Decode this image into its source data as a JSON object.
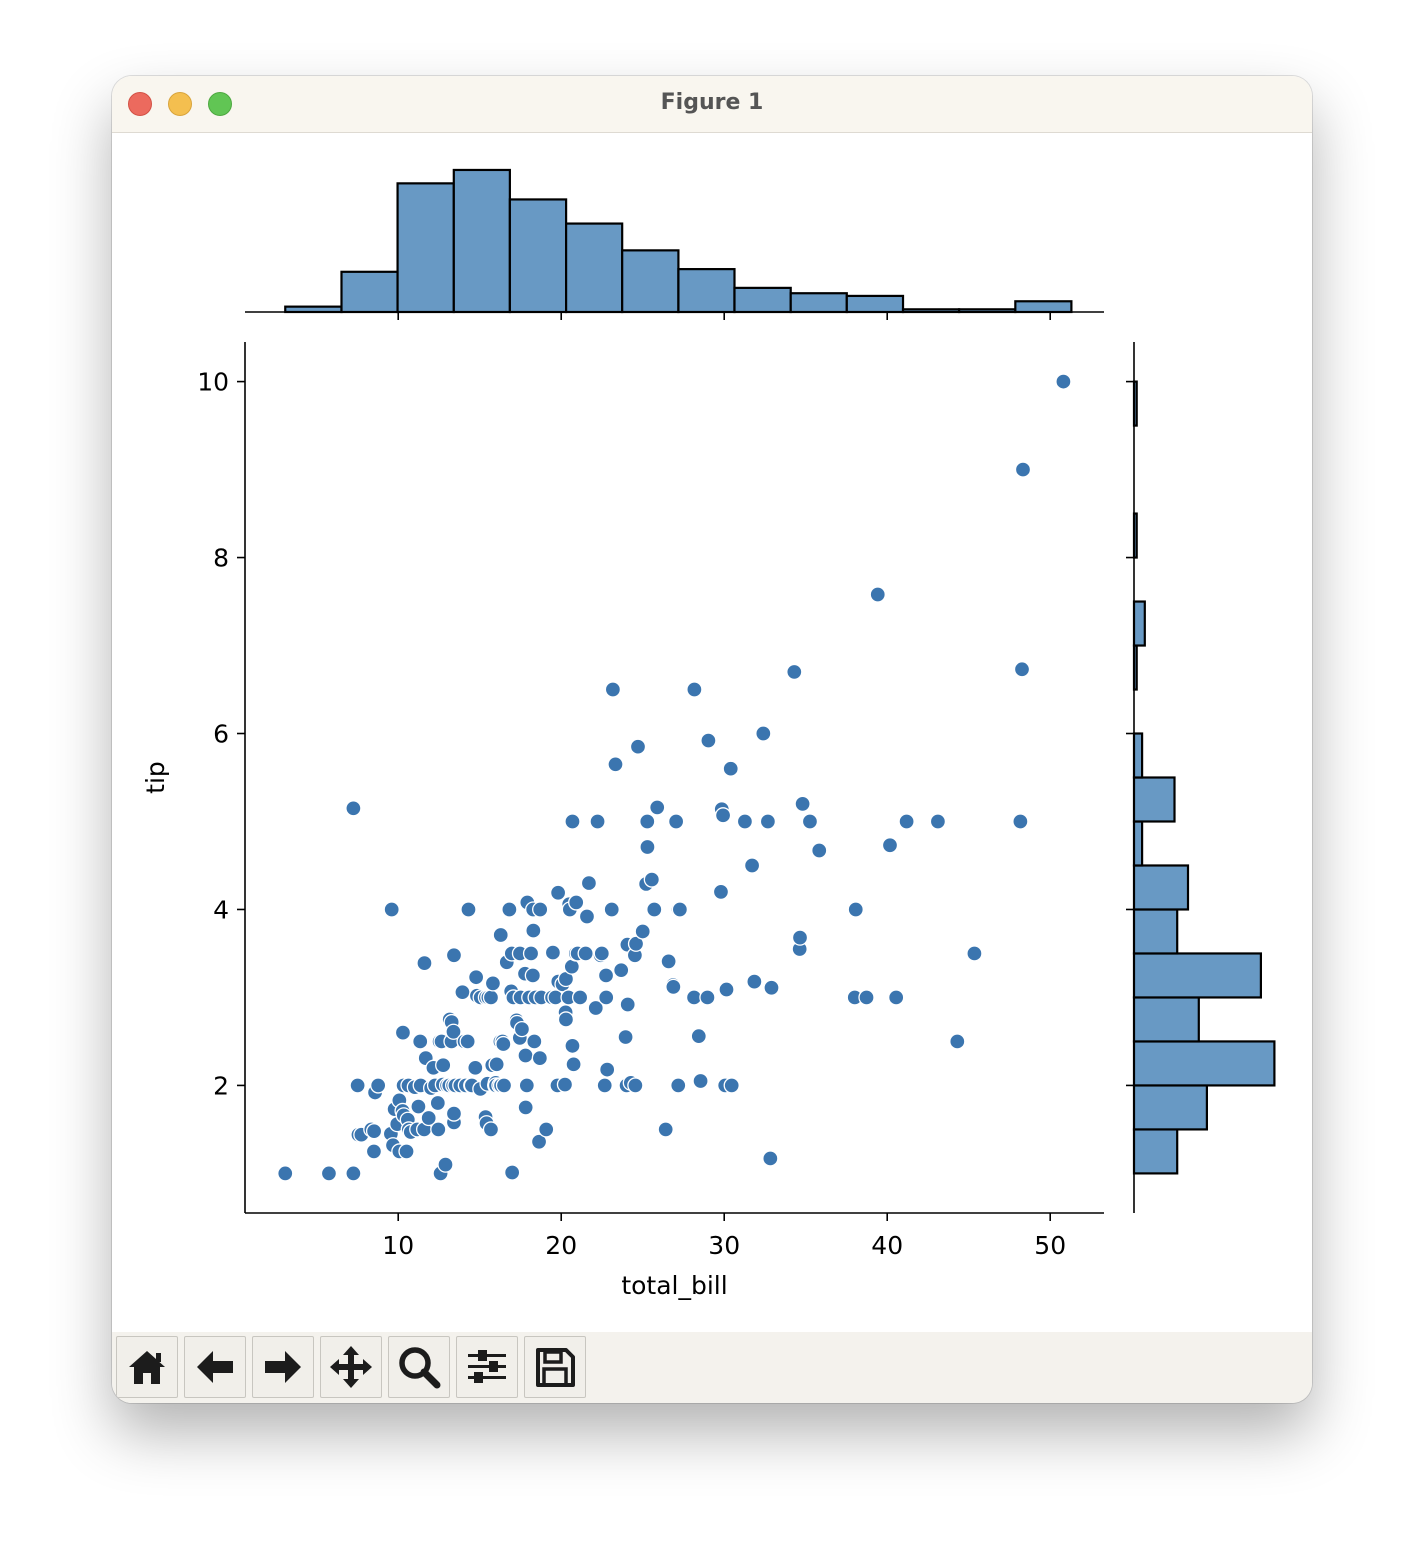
{
  "window": {
    "title": "Figure 1"
  },
  "toolbar": {
    "buttons": [
      {
        "name": "home-button",
        "icon": "home-icon"
      },
      {
        "name": "back-button",
        "icon": "arrow-left-icon"
      },
      {
        "name": "forward-button",
        "icon": "arrow-right-icon"
      },
      {
        "name": "pan-button",
        "icon": "move-icon"
      },
      {
        "name": "zoom-button",
        "icon": "magnifier-icon"
      },
      {
        "name": "configure-subplots-button",
        "icon": "sliders-icon"
      },
      {
        "name": "save-button",
        "icon": "floppy-disk-icon"
      }
    ]
  },
  "chart_data": {
    "type": "scatter",
    "kind": "jointplot",
    "xlabel": "total_bill",
    "ylabel": "tip",
    "xlim": [
      0.6,
      53.3
    ],
    "ylim": [
      0.55,
      10.45
    ],
    "xticks": [
      10,
      20,
      30,
      40,
      50
    ],
    "yticks": [
      2,
      4,
      6,
      8,
      10
    ],
    "grid": false,
    "colors": {
      "marker": "#3b75af",
      "hist_fill": "#6899c4",
      "edge": "#000000"
    },
    "points": [
      [
        3.07,
        1.0
      ],
      [
        5.75,
        1.0
      ],
      [
        7.25,
        1.0
      ],
      [
        7.25,
        5.15
      ],
      [
        7.51,
        2.0
      ],
      [
        7.56,
        1.44
      ],
      [
        7.74,
        1.44
      ],
      [
        8.35,
        1.5
      ],
      [
        8.51,
        1.25
      ],
      [
        8.52,
        1.48
      ],
      [
        8.58,
        1.92
      ],
      [
        8.77,
        2.0
      ],
      [
        9.55,
        1.45
      ],
      [
        9.6,
        4.0
      ],
      [
        9.68,
        1.32
      ],
      [
        9.78,
        1.73
      ],
      [
        9.94,
        1.56
      ],
      [
        10.07,
        1.83
      ],
      [
        10.07,
        1.25
      ],
      [
        10.27,
        1.71
      ],
      [
        10.29,
        2.6
      ],
      [
        10.33,
        2.0
      ],
      [
        10.34,
        1.66
      ],
      [
        10.51,
        1.25
      ],
      [
        10.59,
        1.61
      ],
      [
        10.63,
        2.0
      ],
      [
        10.65,
        1.5
      ],
      [
        10.77,
        1.47
      ],
      [
        11.02,
        1.98
      ],
      [
        11.17,
        1.5
      ],
      [
        11.24,
        1.76
      ],
      [
        11.35,
        2.5
      ],
      [
        11.38,
        2.0
      ],
      [
        11.59,
        1.5
      ],
      [
        11.61,
        3.39
      ],
      [
        11.69,
        2.31
      ],
      [
        11.87,
        1.63
      ],
      [
        12.02,
        1.97
      ],
      [
        12.16,
        2.2
      ],
      [
        12.26,
        2.0
      ],
      [
        12.43,
        1.8
      ],
      [
        12.46,
        1.5
      ],
      [
        12.54,
        2.5
      ],
      [
        12.6,
        1.0
      ],
      [
        12.66,
        2.5
      ],
      [
        12.74,
        2.01
      ],
      [
        12.76,
        2.23
      ],
      [
        12.9,
        1.1
      ],
      [
        13.0,
        2.0
      ],
      [
        13.13,
        2.0
      ],
      [
        13.16,
        2.75
      ],
      [
        13.27,
        2.5
      ],
      [
        13.28,
        2.72
      ],
      [
        13.37,
        2.0
      ],
      [
        13.39,
        2.61
      ],
      [
        13.42,
        1.58
      ],
      [
        13.42,
        3.48
      ],
      [
        13.42,
        1.68
      ],
      [
        13.51,
        2.0
      ],
      [
        13.81,
        2.0
      ],
      [
        13.94,
        3.06
      ],
      [
        14.07,
        2.5
      ],
      [
        14.15,
        2.0
      ],
      [
        14.26,
        2.5
      ],
      [
        14.31,
        4.0
      ],
      [
        14.48,
        2.0
      ],
      [
        14.52,
        2.0
      ],
      [
        14.73,
        2.2
      ],
      [
        14.78,
        3.23
      ],
      [
        14.83,
        3.02
      ],
      [
        15.04,
        1.96
      ],
      [
        15.06,
        3.0
      ],
      [
        15.36,
        1.64
      ],
      [
        15.38,
        3.0
      ],
      [
        15.42,
        1.57
      ],
      [
        15.48,
        2.02
      ],
      [
        15.53,
        3.0
      ],
      [
        15.69,
        1.5
      ],
      [
        15.69,
        3.0
      ],
      [
        15.77,
        2.23
      ],
      [
        15.81,
        3.16
      ],
      [
        15.95,
        2.0
      ],
      [
        15.98,
        2.03
      ],
      [
        16.0,
        2.0
      ],
      [
        16.04,
        2.24
      ],
      [
        16.21,
        2.0
      ],
      [
        16.27,
        2.5
      ],
      [
        16.29,
        3.71
      ],
      [
        16.31,
        2.0
      ],
      [
        16.4,
        2.5
      ],
      [
        16.45,
        2.47
      ],
      [
        16.49,
        2.0
      ],
      [
        16.66,
        3.4
      ],
      [
        16.82,
        4.0
      ],
      [
        16.93,
        3.07
      ],
      [
        16.97,
        3.5
      ],
      [
        16.99,
        1.01
      ],
      [
        17.07,
        3.0
      ],
      [
        17.26,
        2.74
      ],
      [
        17.29,
        2.71
      ],
      [
        17.46,
        2.54
      ],
      [
        17.47,
        3.5
      ],
      [
        17.51,
        3.0
      ],
      [
        17.59,
        2.64
      ],
      [
        17.78,
        3.27
      ],
      [
        17.81,
        2.34
      ],
      [
        17.82,
        1.75
      ],
      [
        17.89,
        2.0
      ],
      [
        17.92,
        4.08
      ],
      [
        18.04,
        3.0
      ],
      [
        18.15,
        3.5
      ],
      [
        18.24,
        3.76
      ],
      [
        18.26,
        3.25
      ],
      [
        18.28,
        4.0
      ],
      [
        18.29,
        3.76
      ],
      [
        18.35,
        2.5
      ],
      [
        18.43,
        3.0
      ],
      [
        18.64,
        1.36
      ],
      [
        18.69,
        2.31
      ],
      [
        18.71,
        4.0
      ],
      [
        18.78,
        3.0
      ],
      [
        19.08,
        1.5
      ],
      [
        19.44,
        3.0
      ],
      [
        19.49,
        3.51
      ],
      [
        19.65,
        3.0
      ],
      [
        19.77,
        2.0
      ],
      [
        19.81,
        4.19
      ],
      [
        19.82,
        3.18
      ],
      [
        20.08,
        3.15
      ],
      [
        20.23,
        2.01
      ],
      [
        20.27,
        2.83
      ],
      [
        20.29,
        2.75
      ],
      [
        20.29,
        3.21
      ],
      [
        20.45,
        3.0
      ],
      [
        20.49,
        4.06
      ],
      [
        20.53,
        4.0
      ],
      [
        20.65,
        3.35
      ],
      [
        20.69,
        2.45
      ],
      [
        20.69,
        5.0
      ],
      [
        20.76,
        2.24
      ],
      [
        20.9,
        3.5
      ],
      [
        20.92,
        4.08
      ],
      [
        21.01,
        3.5
      ],
      [
        21.16,
        3.0
      ],
      [
        21.5,
        3.5
      ],
      [
        21.58,
        3.92
      ],
      [
        21.7,
        4.3
      ],
      [
        22.12,
        2.88
      ],
      [
        22.23,
        5.0
      ],
      [
        22.42,
        3.48
      ],
      [
        22.49,
        3.5
      ],
      [
        22.67,
        2.0
      ],
      [
        22.75,
        3.25
      ],
      [
        22.76,
        3.0
      ],
      [
        22.82,
        2.18
      ],
      [
        23.1,
        4.0
      ],
      [
        23.17,
        6.5
      ],
      [
        23.33,
        5.65
      ],
      [
        23.68,
        3.31
      ],
      [
        23.95,
        2.55
      ],
      [
        24.01,
        2.0
      ],
      [
        24.06,
        3.6
      ],
      [
        24.08,
        2.92
      ],
      [
        24.27,
        2.03
      ],
      [
        24.52,
        3.48
      ],
      [
        24.55,
        2.0
      ],
      [
        24.59,
        3.61
      ],
      [
        24.71,
        5.85
      ],
      [
        25.0,
        3.75
      ],
      [
        25.21,
        4.29
      ],
      [
        25.28,
        5.0
      ],
      [
        25.29,
        4.71
      ],
      [
        25.56,
        4.34
      ],
      [
        25.71,
        4.0
      ],
      [
        25.89,
        5.16
      ],
      [
        26.41,
        1.5
      ],
      [
        26.59,
        3.41
      ],
      [
        26.86,
        3.14
      ],
      [
        26.88,
        3.12
      ],
      [
        27.05,
        5.0
      ],
      [
        27.18,
        2.0
      ],
      [
        27.2,
        4.0
      ],
      [
        27.28,
        4.0
      ],
      [
        28.15,
        3.0
      ],
      [
        28.17,
        6.5
      ],
      [
        28.44,
        2.56
      ],
      [
        28.55,
        2.05
      ],
      [
        28.97,
        3.0
      ],
      [
        29.03,
        5.92
      ],
      [
        29.8,
        4.2
      ],
      [
        29.85,
        5.14
      ],
      [
        29.93,
        5.07
      ],
      [
        30.06,
        2.0
      ],
      [
        30.14,
        3.09
      ],
      [
        30.4,
        5.6
      ],
      [
        30.46,
        2.0
      ],
      [
        31.27,
        5.0
      ],
      [
        31.71,
        4.5
      ],
      [
        31.85,
        3.18
      ],
      [
        32.4,
        6.0
      ],
      [
        32.68,
        5.0
      ],
      [
        32.83,
        1.17
      ],
      [
        32.9,
        3.11
      ],
      [
        34.3,
        6.7
      ],
      [
        34.63,
        3.55
      ],
      [
        34.65,
        3.68
      ],
      [
        34.81,
        5.2
      ],
      [
        35.26,
        5.0
      ],
      [
        35.83,
        4.67
      ],
      [
        38.07,
        4.0
      ],
      [
        38.01,
        3.0
      ],
      [
        38.73,
        3.0
      ],
      [
        39.42,
        7.58
      ],
      [
        40.17,
        4.73
      ],
      [
        40.55,
        3.0
      ],
      [
        41.19,
        5.0
      ],
      [
        43.11,
        5.0
      ],
      [
        44.3,
        2.5
      ],
      [
        45.35,
        3.5
      ],
      [
        48.17,
        5.0
      ],
      [
        48.27,
        6.73
      ],
      [
        48.33,
        9.0
      ],
      [
        50.81,
        10.0
      ]
    ],
    "x_hist": {
      "bin_edges": [
        3.07,
        6.52,
        9.96,
        13.41,
        16.85,
        20.3,
        23.74,
        27.19,
        30.63,
        34.08,
        37.52,
        40.97,
        44.41,
        47.86,
        51.3
      ],
      "counts": [
        2,
        15,
        48,
        53,
        42,
        33,
        23,
        16,
        9,
        7,
        6,
        1,
        1,
        4
      ]
    },
    "y_hist": {
      "bin_edges": [
        1.0,
        1.5,
        2.0,
        2.5,
        3.0,
        3.5,
        4.0,
        4.5,
        5.0,
        5.5,
        6.0,
        6.5,
        7.0,
        7.5,
        8.0,
        8.5,
        9.0,
        9.5,
        10.0
      ],
      "counts": [
        16,
        27,
        52,
        24,
        47,
        16,
        20,
        3,
        15,
        3,
        0,
        1,
        4,
        0,
        1,
        0,
        0,
        1
      ]
    }
  }
}
